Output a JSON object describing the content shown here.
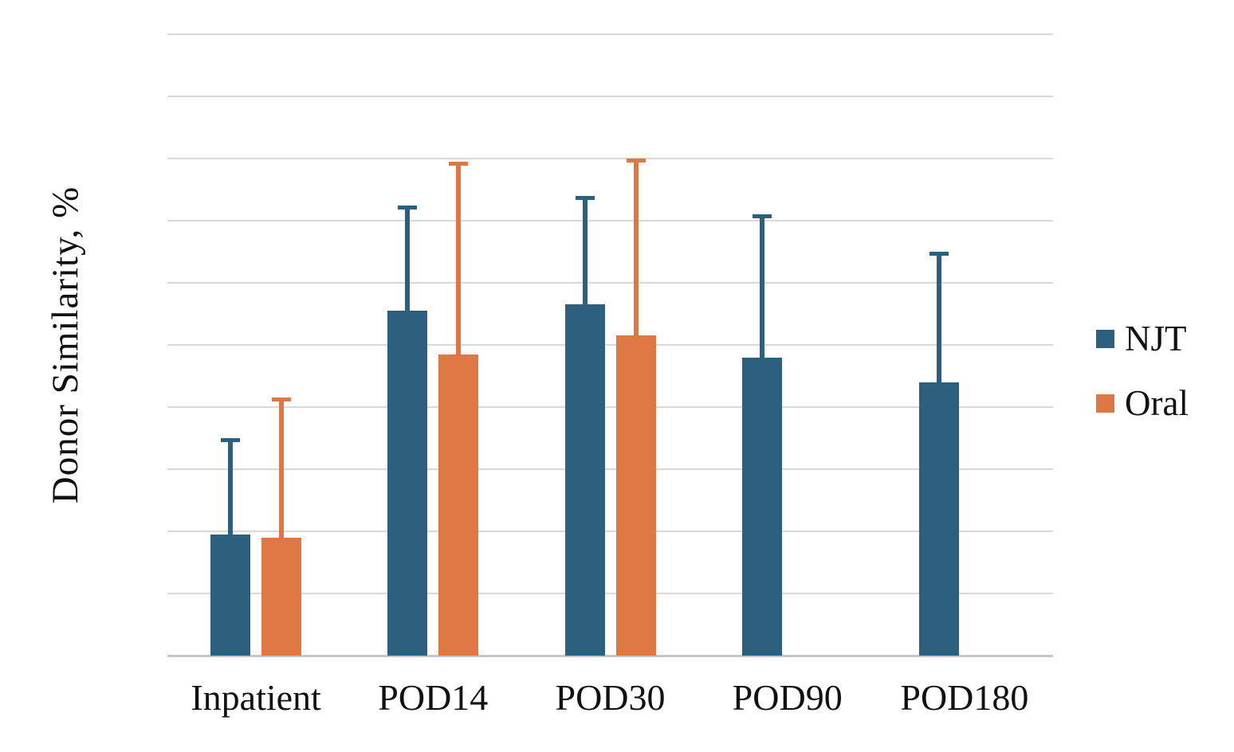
{
  "chart_data": {
    "type": "bar",
    "title": "",
    "xlabel": "",
    "ylabel": "Donor Similarity, %",
    "ylim": [
      0,
      100
    ],
    "yticks": [
      0,
      10,
      20,
      30,
      40,
      50,
      60,
      70,
      80,
      90,
      100
    ],
    "grid": true,
    "legend_position": "right",
    "categories": [
      "Inpatient",
      "POD14",
      "POD30",
      "POD90",
      "POD180"
    ],
    "series": [
      {
        "name": "NJT",
        "color": "#2d607f",
        "values": [
          19.5,
          55.5,
          56.5,
          48,
          44
        ],
        "error_up": [
          15.5,
          17,
          17.5,
          23,
          21
        ]
      },
      {
        "name": "Oral",
        "color": "#dd7844",
        "values": [
          19,
          48.5,
          51.5,
          null,
          null
        ],
        "error_up": [
          22.5,
          31,
          28.5,
          null,
          null
        ]
      }
    ],
    "grid_color": "#d9d9d9",
    "axis_line_color": "#c6c6c6",
    "text_color": "#111111"
  }
}
